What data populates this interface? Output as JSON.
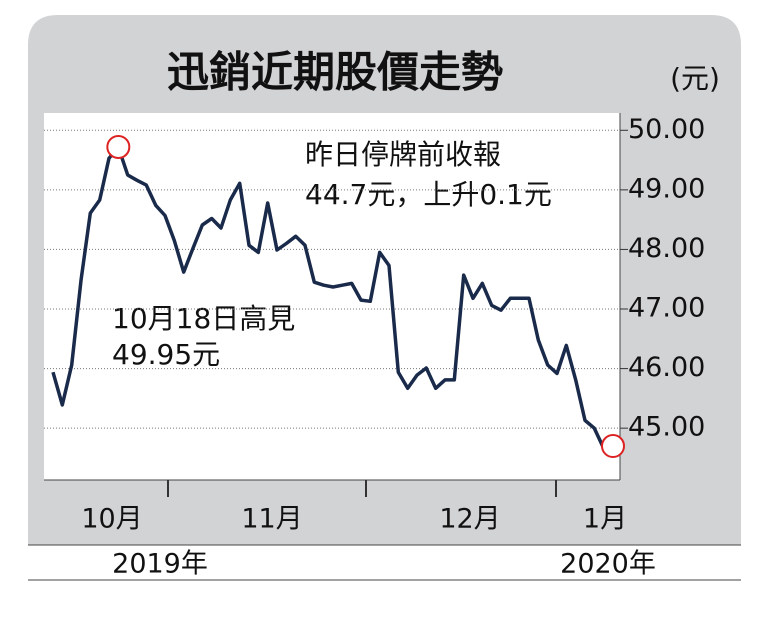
{
  "chart_data": {
    "type": "line",
    "title": "迅銷近期股價走勢",
    "unit": "(元)",
    "values": [
      45.94,
      45.39,
      46.06,
      47.48,
      48.61,
      48.83,
      49.53,
      49.72,
      49.25,
      49.16,
      49.08,
      48.74,
      48.57,
      48.15,
      47.62,
      48.02,
      48.41,
      48.52,
      48.36,
      48.83,
      49.11,
      48.07,
      47.95,
      48.78,
      47.99,
      48.1,
      48.22,
      48.07,
      47.45,
      47.4,
      47.37,
      47.4,
      47.43,
      47.15,
      47.13,
      47.95,
      47.73,
      45.94,
      45.67,
      45.89,
      46.01,
      45.67,
      45.81,
      45.81,
      47.57,
      47.18,
      47.43,
      47.06,
      46.98,
      47.18,
      47.18,
      47.18,
      46.48,
      46.06,
      45.92,
      46.39,
      45.81,
      45.13,
      45.0,
      44.66,
      44.7
    ],
    "color": "#1a2a4a",
    "ylim": [
      44.13,
      50.29
    ],
    "yticks": [
      {
        "value": 45,
        "label": "45.00"
      },
      {
        "value": 46,
        "label": "46.00"
      },
      {
        "value": 47,
        "label": "47.00"
      },
      {
        "value": 48,
        "label": "48.00"
      },
      {
        "value": 49,
        "label": "49.00"
      },
      {
        "value": 50,
        "label": "50.00"
      }
    ],
    "grid": true,
    "months": [
      "10月",
      "11月",
      "12月",
      "1月"
    ],
    "years": [
      "2019年",
      "2020年"
    ],
    "annotations": [
      "昨日停牌前收報",
      "44.7元，上升0.1元",
      "10月18日高見",
      "49.95元"
    ]
  }
}
